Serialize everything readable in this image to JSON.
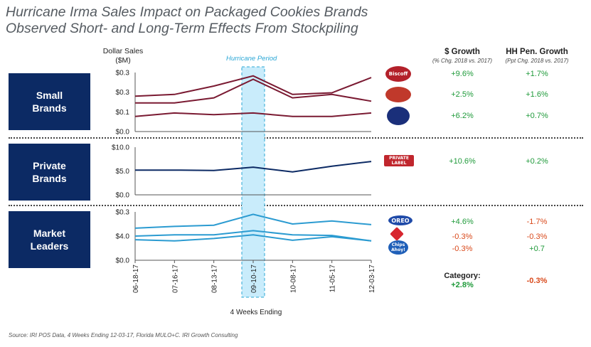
{
  "title_line1": "Hurricane Irma Sales Impact on Packaged Cookies Brands",
  "title_line2": "Observed Short- and Long-Term Effects From Stockpiling",
  "y_axis_label_line1": "Dollar Sales",
  "y_axis_label_line2": "($M)",
  "hurricane_label": "Hurricane Period",
  "x_axis_title": "4 Weeks Ending",
  "source": "Source: IRI POS Data, 4 Weeks Ending 12-03-17, Florida MULO+C. IRI Growth Consulting",
  "columns": {
    "growth_title": "$ Growth",
    "growth_sub": "(% Chg. 2018 vs. 2017)",
    "hh_title": "HH Pen. Growth",
    "hh_sub": "(Ppt Chg. 2018 vs. 2017)"
  },
  "segments": [
    {
      "label_line1": "Small",
      "label_line2": "Brands"
    },
    {
      "label_line1": "Private",
      "label_line2": "Brands"
    },
    {
      "label_line1": "Market",
      "label_line2": "Leaders"
    }
  ],
  "logos": [
    {
      "name": "biscoff-icon",
      "text": "Biscoff",
      "color": "#b3202a"
    },
    {
      "name": "brand-logo-icon",
      "text": "",
      "color": "#c0392b"
    },
    {
      "name": "cookie-brand-icon",
      "text": "",
      "color": "#1a2f7a"
    },
    {
      "name": "private-label-icon",
      "text": "PRIVATE LABEL",
      "color": "#c0262d"
    },
    {
      "name": "oreo-icon",
      "text": "OREO",
      "color": "#1f4aa8"
    },
    {
      "name": "nabisco-icon",
      "text": "",
      "color": "#d7262f"
    },
    {
      "name": "chips-ahoy-icon",
      "text": "Chips Ahoy!",
      "color": "#1f5fb8"
    }
  ],
  "rows": [
    {
      "growth": "+9.6%",
      "growth_color": "pos",
      "hh": "+1.7%",
      "hh_color": "pos"
    },
    {
      "growth": "+2.5%",
      "growth_color": "pos",
      "hh": "+1.6%",
      "hh_color": "pos"
    },
    {
      "growth": "+6.2%",
      "growth_color": "pos",
      "hh": "+0.7%",
      "hh_color": "pos"
    },
    {
      "growth": "+10.6%",
      "growth_color": "pos",
      "hh": "+0.2%",
      "hh_color": "pos"
    },
    {
      "growth": "+4.6%",
      "growth_color": "pos",
      "hh": "-1.7%",
      "hh_color": "neg"
    },
    {
      "growth": "-0.3%",
      "growth_color": "neg",
      "hh": "-0.3%",
      "hh_color": "neg"
    },
    {
      "growth": "-0.3%",
      "growth_color": "neg",
      "hh": "+0.7",
      "hh_color": "pos"
    }
  ],
  "category": {
    "label": "Category:",
    "growth": "+2.8%",
    "growth_color": "pos",
    "hh": "-0.3%",
    "hh_color": "neg"
  },
  "chart_data": {
    "type": "line",
    "x": [
      "06-18-17",
      "07-16-17",
      "08-13-17",
      "09-10-17",
      "10-08-17",
      "11-05-17",
      "12-03-17"
    ],
    "highlight_category": "09-10-17",
    "panels": [
      {
        "name": "Small Brands",
        "yticks": [
          "$0.3",
          "$0.3",
          "$0.1",
          "$0.0"
        ],
        "ylim": [
          0,
          0.35
        ],
        "color": "#7a1a32",
        "series": [
          {
            "values": [
              0.21,
              0.22,
              0.27,
              0.33,
              0.22,
              0.23,
              0.32
            ]
          },
          {
            "values": [
              0.17,
              0.17,
              0.2,
              0.31,
              0.2,
              0.22,
              0.18
            ]
          },
          {
            "values": [
              0.09,
              0.11,
              0.1,
              0.11,
              0.09,
              0.09,
              0.11
            ]
          }
        ]
      },
      {
        "name": "Private Brands",
        "yticks": [
          "$10.0",
          "$5.0",
          "$0.0"
        ],
        "ylim": [
          0,
          10
        ],
        "color": "#0c2a64",
        "series": [
          {
            "values": [
              5.2,
              5.2,
              5.1,
              5.8,
              4.8,
              6.0,
              7.0
            ]
          }
        ]
      },
      {
        "name": "Market Leaders",
        "yticks": [
          "$0.3",
          "$4.0",
          "$0.0"
        ],
        "ylim": [
          0,
          8
        ],
        "color": "#2b9bd1",
        "series": [
          {
            "values": [
              5.3,
              5.6,
              5.8,
              7.6,
              6.0,
              6.5,
              5.9
            ]
          },
          {
            "values": [
              4.0,
              4.2,
              4.2,
              4.9,
              4.2,
              4.1,
              3.2
            ]
          },
          {
            "values": [
              3.4,
              3.2,
              3.6,
              4.2,
              3.3,
              3.9,
              3.2
            ]
          }
        ]
      }
    ]
  }
}
